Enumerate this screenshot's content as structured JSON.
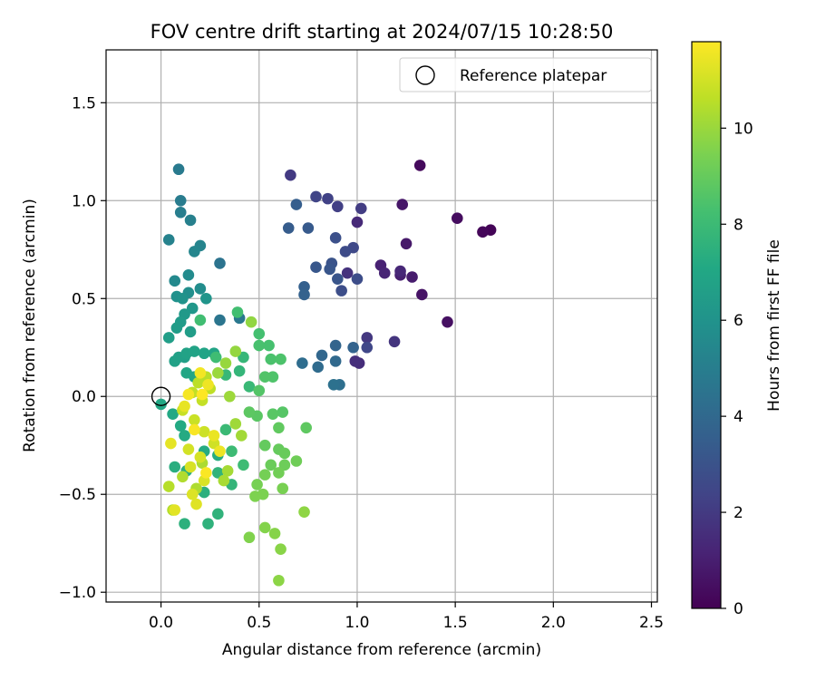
{
  "chart_data": {
    "type": "scatter",
    "title": "FOV centre drift starting at 2024/07/15 10:28:50",
    "xlabel": "Angular distance from reference (arcmin)",
    "ylabel": "Rotation from reference (arcmin)",
    "xlim": [
      -0.28,
      2.53
    ],
    "ylim": [
      -1.05,
      1.77
    ],
    "x_ticks": [
      0.0,
      0.5,
      1.0,
      1.5,
      2.0,
      2.5
    ],
    "x_tick_labels": [
      "0.0",
      "0.5",
      "1.0",
      "1.5",
      "2.0",
      "2.5"
    ],
    "y_ticks": [
      -1.0,
      -0.5,
      0.0,
      0.5,
      1.0,
      1.5
    ],
    "y_tick_labels": [
      "−1.0",
      "−0.5",
      "0.0",
      "0.5",
      "1.0",
      "1.5"
    ],
    "grid": true,
    "legend": {
      "placement": "top-right",
      "entries": [
        "Reference platepar"
      ]
    },
    "reference_point": {
      "x": 0.0,
      "y": 0.0
    },
    "colorbar": {
      "label": "Hours from first FF file",
      "colormap": "viridis",
      "range": [
        0,
        11.8
      ],
      "ticks": [
        0,
        2,
        4,
        6,
        8,
        10
      ],
      "tick_labels": [
        "0",
        "2",
        "4",
        "6",
        "8",
        "10"
      ]
    },
    "points": [
      [
        1.68,
        0.85,
        0.1
      ],
      [
        1.64,
        0.84,
        0.2
      ],
      [
        1.32,
        1.18,
        0.3
      ],
      [
        1.51,
        0.91,
        0.4
      ],
      [
        1.46,
        0.38,
        0.5
      ],
      [
        1.33,
        0.52,
        0.6
      ],
      [
        1.23,
        0.98,
        0.7
      ],
      [
        1.25,
        0.78,
        0.8
      ],
      [
        1.28,
        0.61,
        0.9
      ],
      [
        1.22,
        0.62,
        1.0
      ],
      [
        1.12,
        0.67,
        1.1
      ],
      [
        1.14,
        0.63,
        1.2
      ],
      [
        1.22,
        0.64,
        1.3
      ],
      [
        1.0,
        0.89,
        1.4
      ],
      [
        1.01,
        0.17,
        1.5
      ],
      [
        0.99,
        0.18,
        1.6
      ],
      [
        0.95,
        0.63,
        1.7
      ],
      [
        1.19,
        0.28,
        1.8
      ],
      [
        1.05,
        0.3,
        1.9
      ],
      [
        0.66,
        1.13,
        2.0
      ],
      [
        1.02,
        0.96,
        2.1
      ],
      [
        0.9,
        0.97,
        2.2
      ],
      [
        0.85,
        1.01,
        2.3
      ],
      [
        0.79,
        1.02,
        2.4
      ],
      [
        1.05,
        0.25,
        2.5
      ],
      [
        0.98,
        0.76,
        2.6
      ],
      [
        0.94,
        0.74,
        2.7
      ],
      [
        1.0,
        0.6,
        2.75
      ],
      [
        0.92,
        0.54,
        2.8
      ],
      [
        0.89,
        0.81,
        2.9
      ],
      [
        0.87,
        0.68,
        3.0
      ],
      [
        0.9,
        0.6,
        3.1
      ],
      [
        0.86,
        0.65,
        3.15
      ],
      [
        0.79,
        0.66,
        3.2
      ],
      [
        0.75,
        0.86,
        3.3
      ],
      [
        0.65,
        0.86,
        3.4
      ],
      [
        0.69,
        0.98,
        3.5
      ],
      [
        0.73,
        0.56,
        3.6
      ],
      [
        0.73,
        0.52,
        3.7
      ],
      [
        0.98,
        0.25,
        3.75
      ],
      [
        0.89,
        0.26,
        3.8
      ],
      [
        0.82,
        0.21,
        3.9
      ],
      [
        0.89,
        0.18,
        4.0
      ],
      [
        0.8,
        0.15,
        4.1
      ],
      [
        0.72,
        0.17,
        4.2
      ],
      [
        0.91,
        0.06,
        4.3
      ],
      [
        0.88,
        0.06,
        4.4
      ],
      [
        0.3,
        0.68,
        4.5
      ],
      [
        0.3,
        0.39,
        4.6
      ],
      [
        0.4,
        0.4,
        4.7
      ],
      [
        0.09,
        1.16,
        4.8
      ],
      [
        0.1,
        1.0,
        4.9
      ],
      [
        0.1,
        0.94,
        5.0
      ],
      [
        0.15,
        0.9,
        5.1
      ],
      [
        0.04,
        0.8,
        5.2
      ],
      [
        0.2,
        0.77,
        5.3
      ],
      [
        0.17,
        0.74,
        5.4
      ],
      [
        0.07,
        0.59,
        5.5
      ],
      [
        0.14,
        0.62,
        5.6
      ],
      [
        0.2,
        0.55,
        5.7
      ],
      [
        0.14,
        0.53,
        5.8
      ],
      [
        0.08,
        0.51,
        5.9
      ],
      [
        0.11,
        0.5,
        6.0
      ],
      [
        0.23,
        0.5,
        6.1
      ],
      [
        0.16,
        0.45,
        6.2
      ],
      [
        0.12,
        0.42,
        6.3
      ],
      [
        0.1,
        0.38,
        6.4
      ],
      [
        0.08,
        0.35,
        6.45
      ],
      [
        0.15,
        0.33,
        6.5
      ],
      [
        0.04,
        0.3,
        6.55
      ],
      [
        0.12,
        0.2,
        6.6
      ],
      [
        0.09,
        0.2,
        6.65
      ],
      [
        0.07,
        0.18,
        6.7
      ],
      [
        0.13,
        0.22,
        6.75
      ],
      [
        0.17,
        0.23,
        6.8
      ],
      [
        0.22,
        0.22,
        6.85
      ],
      [
        0.27,
        0.22,
        6.9
      ],
      [
        0.17,
        0.1,
        6.95
      ],
      [
        0.13,
        0.12,
        7.0
      ],
      [
        0.0,
        -0.04,
        7.05
      ],
      [
        0.06,
        -0.09,
        7.1
      ],
      [
        0.1,
        -0.15,
        7.15
      ],
      [
        0.12,
        -0.2,
        7.2
      ],
      [
        0.22,
        -0.28,
        7.25
      ],
      [
        0.29,
        -0.3,
        7.3
      ],
      [
        0.07,
        -0.36,
        7.35
      ],
      [
        0.13,
        -0.38,
        7.4
      ],
      [
        0.22,
        -0.49,
        7.45
      ],
      [
        0.12,
        -0.65,
        7.5
      ],
      [
        0.24,
        -0.65,
        7.55
      ],
      [
        0.29,
        -0.6,
        7.6
      ],
      [
        0.29,
        -0.39,
        7.65
      ],
      [
        0.36,
        -0.45,
        7.7
      ],
      [
        0.4,
        0.13,
        7.75
      ],
      [
        0.42,
        0.2,
        7.8
      ],
      [
        0.33,
        0.11,
        7.85
      ],
      [
        0.45,
        0.05,
        7.9
      ],
      [
        0.33,
        -0.17,
        7.95
      ],
      [
        0.36,
        -0.28,
        8.0
      ],
      [
        0.42,
        -0.35,
        8.05
      ],
      [
        0.28,
        0.2,
        8.1
      ],
      [
        0.2,
        0.39,
        8.15
      ],
      [
        0.39,
        0.43,
        8.2
      ],
      [
        0.5,
        0.32,
        8.25
      ],
      [
        0.55,
        0.26,
        8.3
      ],
      [
        0.5,
        0.26,
        8.35
      ],
      [
        0.56,
        0.19,
        8.4
      ],
      [
        0.61,
        0.19,
        8.45
      ],
      [
        0.57,
        0.1,
        8.5
      ],
      [
        0.53,
        0.1,
        8.55
      ],
      [
        0.5,
        0.03,
        8.6
      ],
      [
        0.62,
        -0.08,
        8.65
      ],
      [
        0.57,
        -0.09,
        8.7
      ],
      [
        0.49,
        -0.1,
        8.75
      ],
      [
        0.45,
        -0.08,
        8.8
      ],
      [
        0.74,
        -0.16,
        8.85
      ],
      [
        0.6,
        -0.16,
        8.9
      ],
      [
        0.53,
        -0.25,
        8.95
      ],
      [
        0.6,
        -0.27,
        9.0
      ],
      [
        0.63,
        -0.29,
        9.05
      ],
      [
        0.56,
        -0.35,
        9.1
      ],
      [
        0.63,
        -0.35,
        9.15
      ],
      [
        0.69,
        -0.33,
        9.2
      ],
      [
        0.6,
        -0.39,
        9.25
      ],
      [
        0.53,
        -0.4,
        9.3
      ],
      [
        0.49,
        -0.45,
        9.35
      ],
      [
        0.62,
        -0.47,
        9.4
      ],
      [
        0.52,
        -0.5,
        9.45
      ],
      [
        0.48,
        -0.51,
        9.5
      ],
      [
        0.45,
        -0.72,
        9.55
      ],
      [
        0.53,
        -0.67,
        9.6
      ],
      [
        0.58,
        -0.7,
        9.65
      ],
      [
        0.61,
        -0.78,
        9.7
      ],
      [
        0.6,
        -0.94,
        9.75
      ],
      [
        0.73,
        -0.59,
        9.8
      ],
      [
        0.46,
        0.38,
        9.85
      ],
      [
        0.38,
        0.23,
        9.9
      ],
      [
        0.33,
        0.17,
        9.95
      ],
      [
        0.29,
        0.12,
        10.0
      ],
      [
        0.35,
        0.0,
        10.05
      ],
      [
        0.38,
        -0.14,
        10.1
      ],
      [
        0.41,
        -0.2,
        10.15
      ],
      [
        0.34,
        -0.38,
        10.2
      ],
      [
        0.32,
        -0.43,
        10.25
      ],
      [
        0.21,
        -0.34,
        10.3
      ],
      [
        0.18,
        -0.47,
        10.35
      ],
      [
        0.11,
        -0.41,
        10.4
      ],
      [
        0.06,
        -0.58,
        10.45
      ],
      [
        0.04,
        -0.46,
        10.5
      ],
      [
        0.23,
        0.1,
        10.55
      ],
      [
        0.19,
        0.07,
        10.6
      ],
      [
        0.25,
        0.04,
        10.65
      ],
      [
        0.16,
        0.02,
        10.7
      ],
      [
        0.21,
        -0.02,
        10.75
      ],
      [
        0.11,
        -0.07,
        10.8
      ],
      [
        0.17,
        -0.12,
        10.85
      ],
      [
        0.22,
        -0.18,
        10.9
      ],
      [
        0.27,
        -0.24,
        10.95
      ],
      [
        0.14,
        -0.27,
        11.0
      ],
      [
        0.2,
        -0.31,
        11.05
      ],
      [
        0.15,
        -0.36,
        11.1
      ],
      [
        0.22,
        -0.43,
        11.15
      ],
      [
        0.16,
        -0.5,
        11.2
      ],
      [
        0.18,
        -0.55,
        11.25
      ],
      [
        0.07,
        -0.58,
        11.3
      ],
      [
        0.05,
        -0.24,
        11.35
      ],
      [
        0.12,
        -0.05,
        11.4
      ],
      [
        0.27,
        -0.2,
        11.45
      ],
      [
        0.3,
        -0.28,
        11.5
      ],
      [
        0.24,
        0.06,
        11.55
      ],
      [
        0.2,
        0.12,
        11.6
      ],
      [
        0.14,
        0.01,
        11.65
      ],
      [
        0.17,
        -0.17,
        11.7
      ],
      [
        0.23,
        -0.39,
        11.75
      ],
      [
        0.21,
        0.01,
        11.8
      ]
    ]
  }
}
